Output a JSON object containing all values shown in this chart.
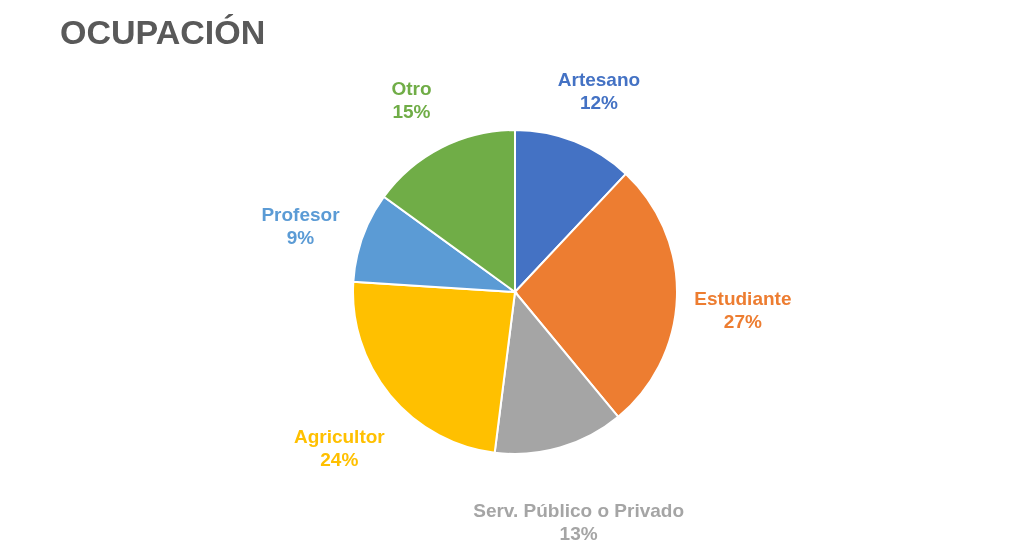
{
  "chart_data": {
    "type": "pie",
    "title": "OCUPACIÓN",
    "categories": [
      "Artesano",
      "Estudiante",
      "Serv. Público o Privado",
      "Agricultor",
      "Profesor",
      "Otro"
    ],
    "values": [
      12,
      27,
      13,
      24,
      9,
      15
    ],
    "colors": [
      "#4472c4",
      "#ed7d31",
      "#a5a5a5",
      "#ffc000",
      "#5b9bd5",
      "#70ad47"
    ],
    "value_labels": [
      "12%",
      "27%",
      "13%",
      "24%",
      "9%",
      "15%"
    ],
    "legend": false
  }
}
